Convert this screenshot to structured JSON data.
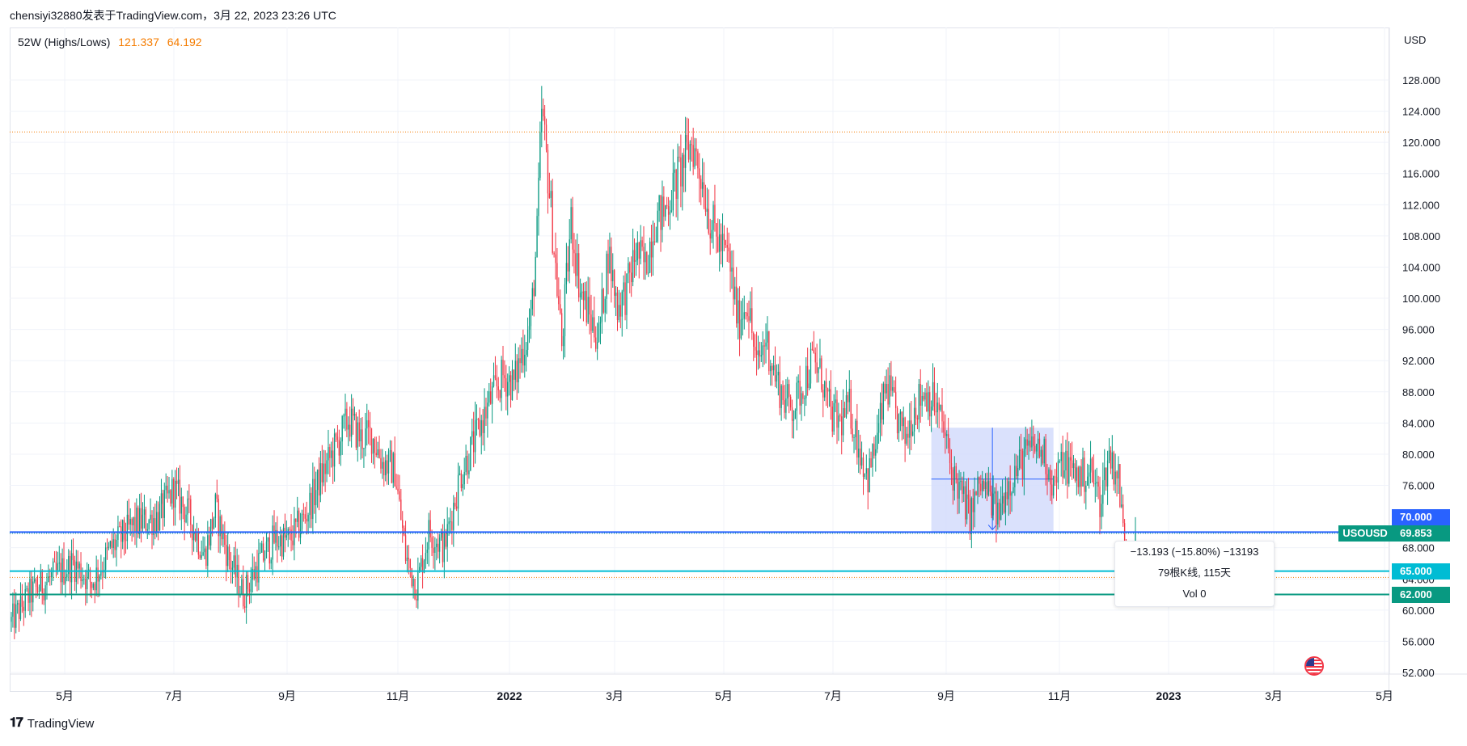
{
  "header": {
    "text": "chensiyi32880发表于TradingView.com，3月 22, 2023 23:26 UTC"
  },
  "legend": {
    "label": "52W (Highs/Lows)",
    "high": "121.337",
    "low": "64.192"
  },
  "currency": "USD",
  "symbol": "USOUSD",
  "footer": {
    "brand": "TradingView"
  },
  "measure": {
    "line1": "−13.193 (−15.80%) −13193",
    "line2": "79根K线, 115天",
    "line3": "Vol 0"
  },
  "colors": {
    "up": "#089981",
    "down": "#f23645",
    "blue": "#2962ff",
    "cyan": "#00bcd4",
    "teal": "#089981",
    "orange": "#f57c00",
    "measure_fill": "#d3dcfb"
  },
  "chart_data": {
    "type": "candlestick",
    "y_ticks": [
      "128.000",
      "124.000",
      "120.000",
      "116.000",
      "112.000",
      "108.000",
      "104.000",
      "100.000",
      "96.000",
      "92.000",
      "88.000",
      "84.000",
      "80.000",
      "76.000",
      "68.000",
      "64.000",
      "60.000",
      "56.000",
      "52.000"
    ],
    "y_tick_values": [
      128,
      124,
      120,
      116,
      112,
      108,
      104,
      100,
      96,
      92,
      88,
      84,
      80,
      76,
      68,
      64,
      60,
      56,
      52
    ],
    "x_ticks": [
      {
        "label": "5月",
        "bold": false
      },
      {
        "label": "7月",
        "bold": false
      },
      {
        "label": "9月",
        "bold": false
      },
      {
        "label": "11月",
        "bold": false
      },
      {
        "label": "2022",
        "bold": true
      },
      {
        "label": "3月",
        "bold": false
      },
      {
        "label": "5月",
        "bold": false
      },
      {
        "label": "7月",
        "bold": false
      },
      {
        "label": "9月",
        "bold": false
      },
      {
        "label": "11月",
        "bold": false
      },
      {
        "label": "2023",
        "bold": true
      },
      {
        "label": "3月",
        "bold": false
      },
      {
        "label": "5月",
        "bold": false
      }
    ],
    "ylim": [
      50,
      132
    ],
    "horizontal_levels": [
      {
        "label": "70.000",
        "value": 70.0,
        "color": "#2962ff"
      },
      {
        "label": "65.000",
        "value": 65.0,
        "color": "#00bcd4"
      },
      {
        "label": "62.000",
        "value": 62.0,
        "color": "#089981"
      }
    ],
    "last_price": {
      "label": "69.853",
      "value": 69.853
    },
    "high_low_52w": {
      "high": 121.337,
      "low": 64.192
    },
    "anchors": [
      [
        0,
        58.5
      ],
      [
        12,
        62
      ],
      [
        25,
        64
      ],
      [
        40,
        66
      ],
      [
        52,
        63.5
      ],
      [
        65,
        68
      ],
      [
        80,
        71
      ],
      [
        95,
        72
      ],
      [
        105,
        75.5
      ],
      [
        115,
        72
      ],
      [
        125,
        67
      ],
      [
        132,
        73
      ],
      [
        140,
        67
      ],
      [
        150,
        62
      ],
      [
        160,
        66
      ],
      [
        170,
        69
      ],
      [
        180,
        69
      ],
      [
        190,
        72
      ],
      [
        200,
        77
      ],
      [
        210,
        81
      ],
      [
        218,
        84.5
      ],
      [
        226,
        82
      ],
      [
        233,
        82.5
      ],
      [
        240,
        79
      ],
      [
        248,
        78
      ],
      [
        255,
        67
      ],
      [
        262,
        63
      ],
      [
        270,
        70
      ],
      [
        280,
        68
      ],
      [
        290,
        77
      ],
      [
        300,
        82
      ],
      [
        310,
        87
      ],
      [
        318,
        90
      ],
      [
        325,
        89
      ],
      [
        330,
        93
      ],
      [
        336,
        97
      ],
      [
        340,
        108
      ],
      [
        343,
        124
      ],
      [
        347,
        116
      ],
      [
        352,
        104
      ],
      [
        356,
        94
      ],
      [
        362,
        110
      ],
      [
        368,
        101
      ],
      [
        375,
        97
      ],
      [
        380,
        95
      ],
      [
        386,
        106
      ],
      [
        392,
        99
      ],
      [
        398,
        101
      ],
      [
        404,
        106
      ],
      [
        410,
        104
      ],
      [
        416,
        110
      ],
      [
        422,
        111
      ],
      [
        428,
        114
      ],
      [
        434,
        117
      ],
      [
        440,
        120
      ],
      [
        446,
        116
      ],
      [
        452,
        110
      ],
      [
        458,
        107
      ],
      [
        464,
        105
      ],
      [
        470,
        97
      ],
      [
        476,
        100
      ],
      [
        482,
        91
      ],
      [
        488,
        95
      ],
      [
        494,
        90
      ],
      [
        500,
        87
      ],
      [
        506,
        86
      ],
      [
        512,
        89
      ],
      [
        518,
        92
      ],
      [
        524,
        90
      ],
      [
        530,
        85
      ],
      [
        536,
        84
      ],
      [
        542,
        86
      ],
      [
        548,
        81
      ],
      [
        554,
        77
      ],
      [
        560,
        82
      ],
      [
        566,
        89
      ],
      [
        572,
        85
      ],
      [
        578,
        82
      ],
      [
        584,
        86
      ],
      [
        590,
        88
      ],
      [
        596,
        87
      ],
      [
        602,
        84
      ],
      [
        608,
        78
      ],
      [
        614,
        75
      ],
      [
        620,
        72
      ],
      [
        626,
        76
      ],
      [
        632,
        75
      ],
      [
        638,
        72
      ],
      [
        644,
        76
      ],
      [
        650,
        78
      ],
      [
        656,
        80
      ],
      [
        662,
        81
      ],
      [
        668,
        80
      ],
      [
        674,
        76
      ],
      [
        680,
        79
      ],
      [
        686,
        78
      ],
      [
        692,
        77
      ],
      [
        698,
        78
      ],
      [
        704,
        74
      ],
      [
        710,
        80
      ],
      [
        716,
        77
      ],
      [
        720,
        68
      ],
      [
        723,
        65.5
      ],
      [
        727,
        69.9
      ]
    ],
    "n_bars": 728,
    "measure_range": {
      "from_bar": 595,
      "to_bar": 674,
      "top": 83.4,
      "bottom": 70.1,
      "mid_price": 76.8
    }
  }
}
